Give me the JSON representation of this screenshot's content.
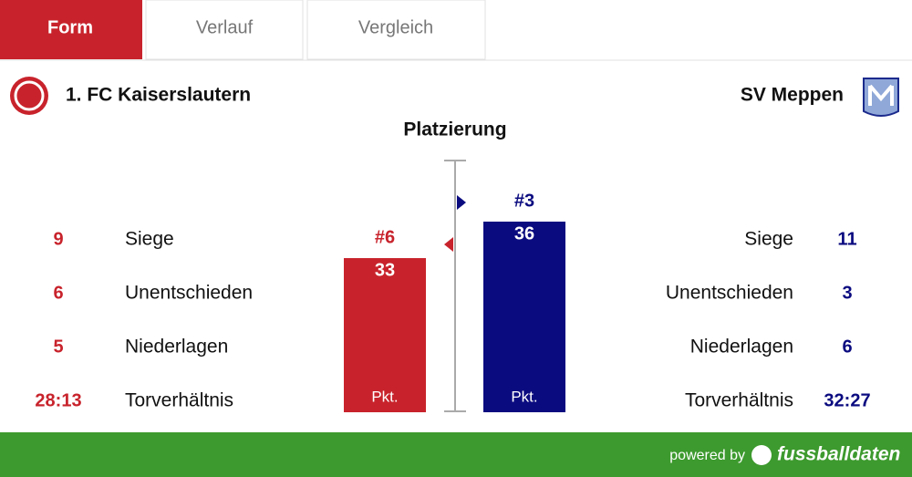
{
  "tabs": [
    "Form",
    "Verlauf",
    "Vergleich"
  ],
  "home": {
    "name": "1. FC Kaiserslautern",
    "stats": [
      9,
      6,
      5,
      "28:13"
    ],
    "rank": 6,
    "rank_label": "#6",
    "points": 33
  },
  "away": {
    "name": "SV Meppen",
    "stats": [
      11,
      3,
      6,
      "32:27"
    ],
    "rank": 3,
    "rank_label": "#3",
    "points": 36
  },
  "stat_labels": [
    "Siege",
    "Unentschieden",
    "Niederlagen",
    "Torverhältnis"
  ],
  "placement": {
    "title": "Platzierung",
    "unit": "Pkt."
  },
  "footer": {
    "powered_by": "powered by",
    "brand": "fussballdaten"
  }
}
